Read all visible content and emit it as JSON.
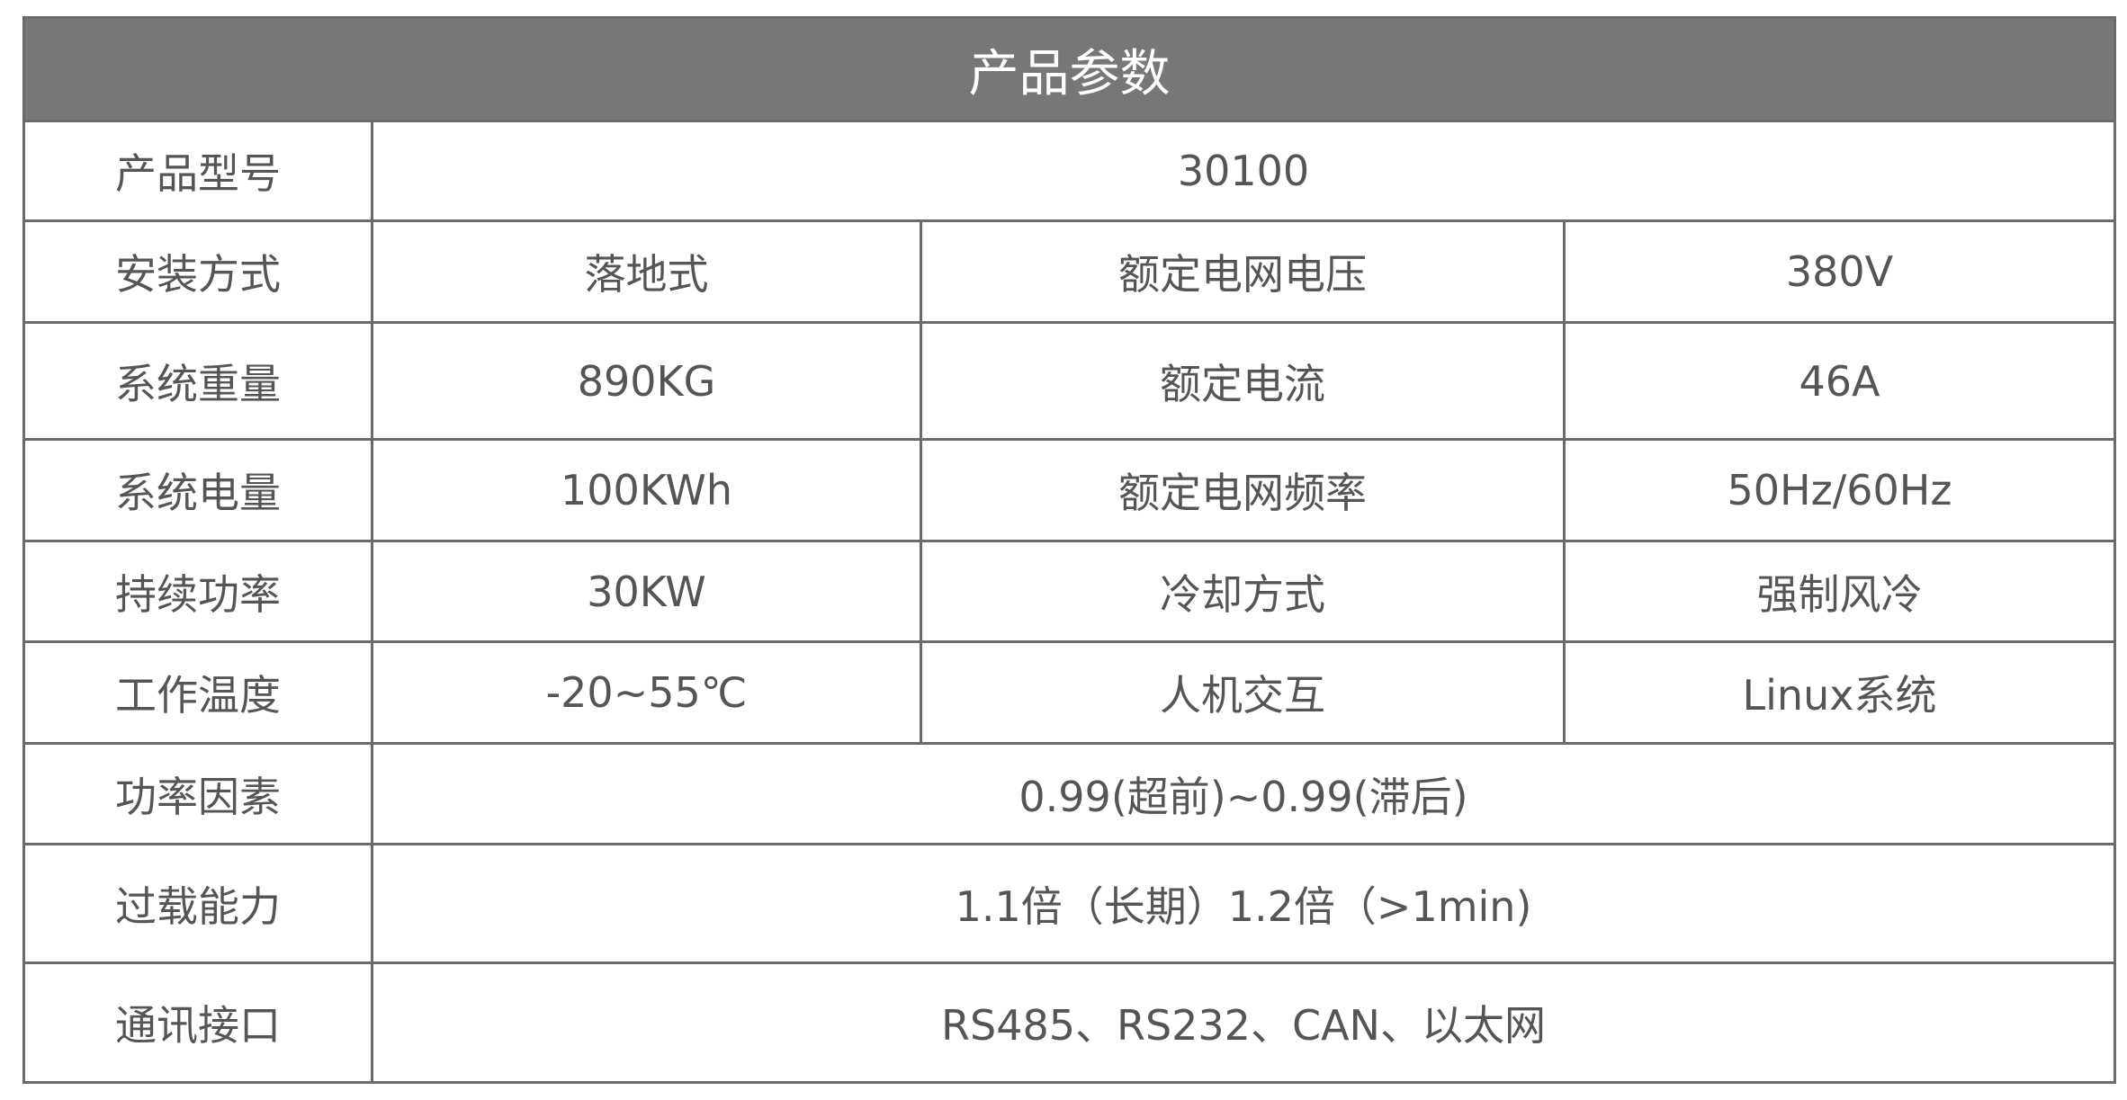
{
  "title": "产品参数",
  "rows": [
    {
      "label": "产品型号",
      "value": "30100"
    },
    {
      "label": "安装方式",
      "value": "落地式",
      "label2": "额定电网电压",
      "value2": "380V"
    },
    {
      "label": "系统重量",
      "value": "890KG",
      "label2": "额定电流",
      "value2": "46A"
    },
    {
      "label": "系统电量",
      "value": "100KWh",
      "label2": "额定电网频率",
      "value2": "50Hz/60Hz"
    },
    {
      "label": "持续功率",
      "value": "30KW",
      "label2": "冷却方式",
      "value2": "强制风冷"
    },
    {
      "label": "工作温度",
      "value": "-20~55℃",
      "label2": "人机交互",
      "value2": "Linux系统"
    },
    {
      "label": "功率因素",
      "value": "0.99(超前)~0.99(滞后)"
    },
    {
      "label": "过载能力",
      "value": "1.1倍（长期）1.2倍（>1min)"
    },
    {
      "label": "通讯接口",
      "value": "RS485、RS232、CAN、以太网"
    }
  ]
}
